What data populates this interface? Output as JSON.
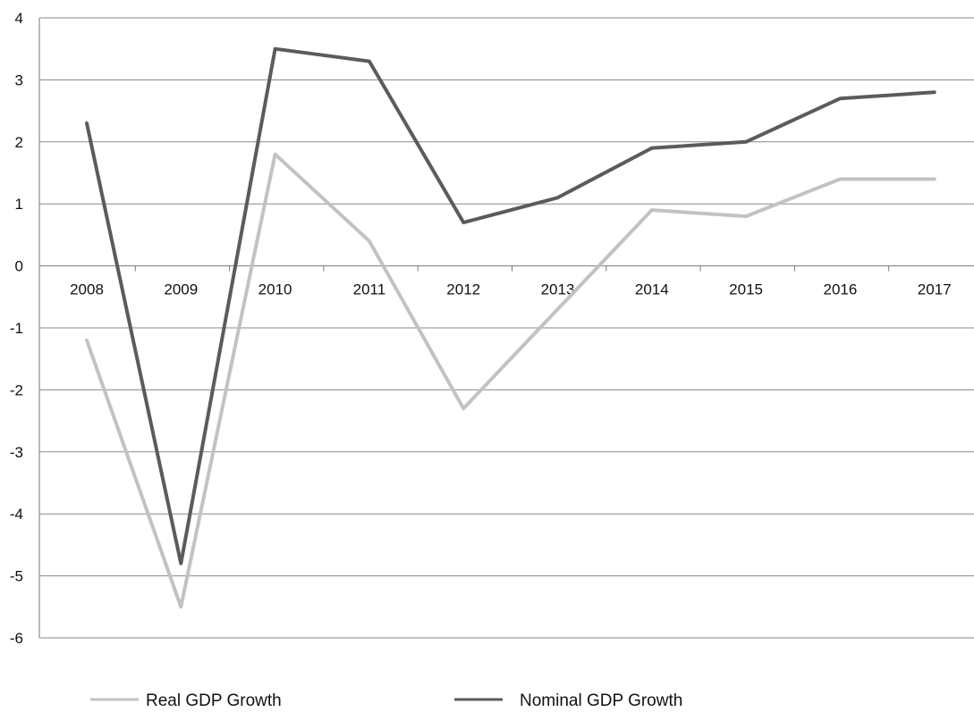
{
  "chart_data": {
    "type": "line",
    "categories": [
      "2008",
      "2009",
      "2010",
      "2011",
      "2012",
      "2013",
      "2014",
      "2015",
      "2016",
      "2017"
    ],
    "series": [
      {
        "name": "Real GDP Growth",
        "color": "#c2c2c2",
        "values": [
          -1.2,
          -5.5,
          1.8,
          0.4,
          -2.3,
          -0.7,
          0.9,
          0.8,
          1.4,
          1.4
        ]
      },
      {
        "name": "Nominal GDP Growth",
        "color": "#5b5b5b",
        "values": [
          2.3,
          -4.8,
          3.5,
          3.3,
          0.7,
          1.1,
          1.9,
          2.0,
          2.7,
          2.8
        ]
      }
    ],
    "ylim": [
      -6,
      4
    ],
    "yticks": [
      "4",
      "3",
      "2",
      "1",
      "0",
      "-1",
      "-2",
      "-3",
      "-4",
      "-5",
      "-6"
    ],
    "ytick_values": [
      4,
      3,
      2,
      1,
      0,
      -1,
      -2,
      -3,
      -4,
      -5,
      -6
    ],
    "grid": true,
    "legend_position": "bottom",
    "title": "",
    "xlabel": "",
    "ylabel": ""
  }
}
